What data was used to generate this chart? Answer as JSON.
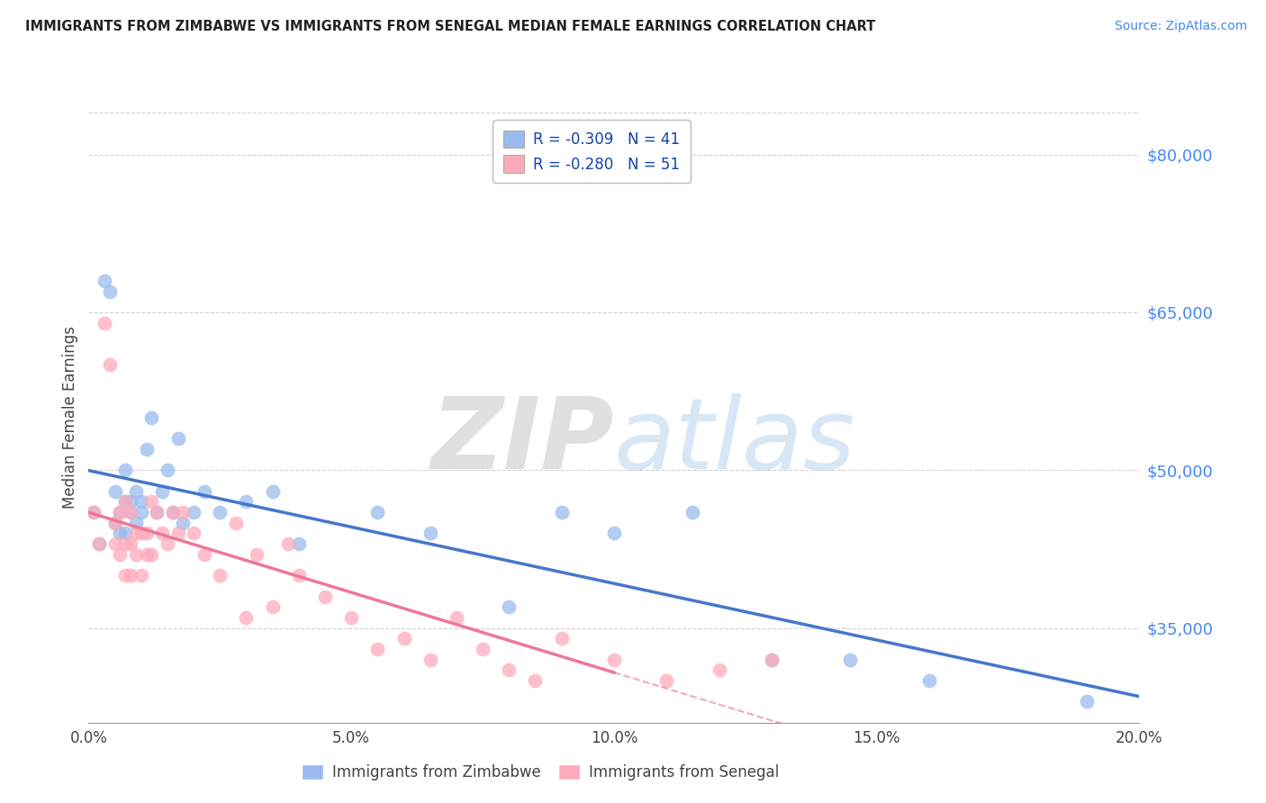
{
  "title": "IMMIGRANTS FROM ZIMBABWE VS IMMIGRANTS FROM SENEGAL MEDIAN FEMALE EARNINGS CORRELATION CHART",
  "source": "Source: ZipAtlas.com",
  "ylabel": "Median Female Earnings",
  "watermark_zip": "ZIP",
  "watermark_atlas": "atlas",
  "bg_color": "#ffffff",
  "grid_color": "#d0d0d0",
  "r_zimbabwe": -0.309,
  "n_zimbabwe": 41,
  "r_senegal": -0.28,
  "n_senegal": 51,
  "color_zimbabwe": "#99bbee",
  "color_senegal": "#ffaabb",
  "line_color_zimbabwe": "#4477cc",
  "line_color_senegal": "#ee7799",
  "xlim": [
    0.0,
    0.2
  ],
  "ylim": [
    26000,
    84000
  ],
  "yticks": [
    35000,
    50000,
    65000,
    80000
  ],
  "xticks": [
    0.0,
    0.05,
    0.1,
    0.15,
    0.2
  ],
  "zimbabwe_x": [
    0.001,
    0.002,
    0.003,
    0.004,
    0.005,
    0.005,
    0.006,
    0.006,
    0.007,
    0.007,
    0.007,
    0.008,
    0.008,
    0.009,
    0.009,
    0.01,
    0.01,
    0.011,
    0.012,
    0.013,
    0.014,
    0.015,
    0.016,
    0.017,
    0.018,
    0.02,
    0.022,
    0.025,
    0.03,
    0.035,
    0.04,
    0.055,
    0.065,
    0.08,
    0.09,
    0.1,
    0.115,
    0.13,
    0.145,
    0.16,
    0.19
  ],
  "zimbabwe_y": [
    46000,
    43000,
    68000,
    67000,
    48000,
    45000,
    46000,
    44000,
    50000,
    47000,
    44000,
    47000,
    46000,
    48000,
    45000,
    47000,
    46000,
    52000,
    55000,
    46000,
    48000,
    50000,
    46000,
    53000,
    45000,
    46000,
    48000,
    46000,
    47000,
    48000,
    43000,
    46000,
    44000,
    37000,
    46000,
    44000,
    46000,
    32000,
    32000,
    30000,
    28000
  ],
  "senegal_x": [
    0.001,
    0.002,
    0.003,
    0.004,
    0.005,
    0.005,
    0.006,
    0.006,
    0.007,
    0.007,
    0.007,
    0.008,
    0.008,
    0.008,
    0.009,
    0.009,
    0.01,
    0.01,
    0.011,
    0.011,
    0.012,
    0.012,
    0.013,
    0.014,
    0.015,
    0.016,
    0.017,
    0.018,
    0.02,
    0.022,
    0.025,
    0.028,
    0.03,
    0.032,
    0.035,
    0.038,
    0.04,
    0.045,
    0.05,
    0.055,
    0.06,
    0.065,
    0.07,
    0.075,
    0.08,
    0.085,
    0.09,
    0.1,
    0.11,
    0.12,
    0.13
  ],
  "senegal_y": [
    46000,
    43000,
    64000,
    60000,
    45000,
    43000,
    42000,
    46000,
    40000,
    43000,
    47000,
    43000,
    46000,
    40000,
    42000,
    44000,
    40000,
    44000,
    42000,
    44000,
    42000,
    47000,
    46000,
    44000,
    43000,
    46000,
    44000,
    46000,
    44000,
    42000,
    40000,
    45000,
    36000,
    42000,
    37000,
    43000,
    40000,
    38000,
    36000,
    33000,
    34000,
    32000,
    36000,
    33000,
    31000,
    30000,
    34000,
    32000,
    30000,
    31000,
    32000
  ]
}
